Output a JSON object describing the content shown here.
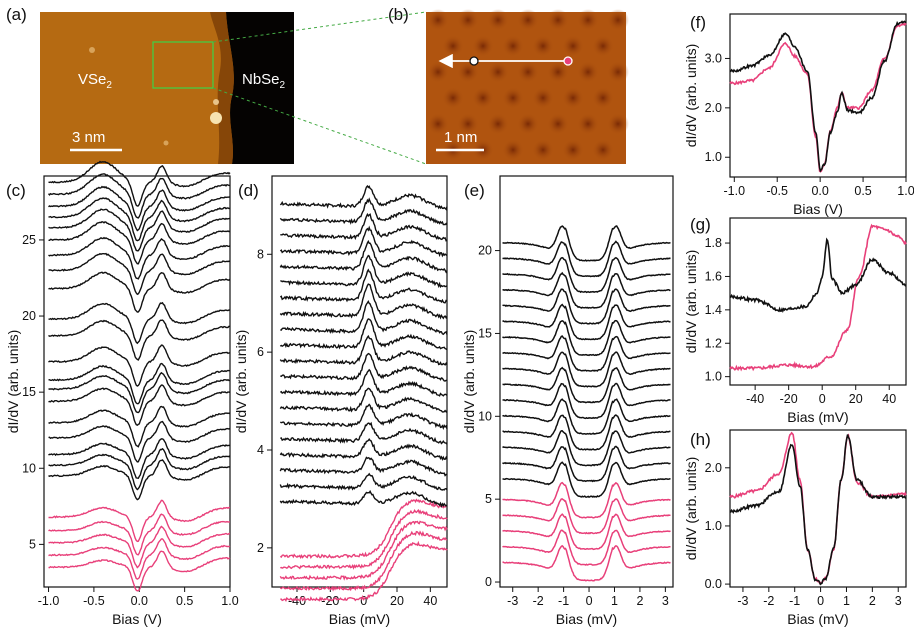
{
  "panel_labels": {
    "a": "(a)",
    "b": "(b)",
    "c": "(c)",
    "d": "(d)",
    "e": "(e)",
    "f": "(f)",
    "g": "(g)",
    "h": "(h)"
  },
  "images": {
    "a": {
      "left_label": "VSe",
      "left_sub": "2",
      "right_label": "NbSe",
      "right_sub": "2",
      "scale": "3 nm"
    },
    "b": {
      "scale": "1 nm"
    }
  },
  "colors": {
    "black": "#111111",
    "pink": "#e8407a"
  },
  "chart_data": [
    {
      "panel": "c",
      "type": "line",
      "xlabel": "Bias (V)",
      "ylabel": "dI/dV (arb. units)",
      "xlim": [
        -1.05,
        1.0
      ],
      "ylim": [
        2.2,
        29.2
      ],
      "xticks": [
        -1.0,
        -0.5,
        0.0,
        0.5,
        1.0
      ],
      "xtick_labels": [
        "-1.0",
        "-0.5",
        "0.0",
        "0.5",
        "1.0"
      ],
      "yticks": [
        5,
        10,
        15,
        20,
        25
      ],
      "ytick_labels": [
        "5",
        "10",
        "15",
        "20",
        "25"
      ],
      "series": [
        {
          "name": "black",
          "color": "#111111",
          "count": 20
        },
        {
          "name": "pink",
          "color": "#e8407a",
          "count": 5
        }
      ],
      "offsets": [
        3.5,
        4.3,
        5.1,
        5.9,
        6.8,
        9.5,
        10.2,
        10.9,
        12.0,
        13.0,
        14.4,
        15.2,
        15.8,
        17.0,
        18.7,
        19.8,
        21.8,
        23.0,
        24.0,
        25.0,
        25.8,
        26.5,
        27.2,
        28.0,
        28.8
      ]
    },
    {
      "panel": "d",
      "type": "line",
      "xlabel": "Bias (mV)",
      "ylabel": "dI/dV (arb. units)",
      "xlim": [
        -55,
        50
      ],
      "ylim": [
        1.2,
        9.6
      ],
      "xticks": [
        -40,
        -20,
        0,
        20,
        40
      ],
      "xtick_labels": [
        "-40",
        "-20",
        "0",
        "20",
        "40"
      ],
      "yticks": [
        2,
        4,
        6,
        8
      ],
      "ytick_labels": [
        "2",
        "4",
        "6",
        "8"
      ],
      "series": [
        {
          "name": "black",
          "color": "#111111",
          "count": 20
        },
        {
          "name": "pink",
          "color": "#e8407a",
          "count": 5
        }
      ]
    },
    {
      "panel": "e",
      "type": "line",
      "xlabel": "Bias (mV)",
      "ylabel": "dI/dV (arb. units)",
      "xlim": [
        -3.5,
        3.3
      ],
      "ylim": [
        -0.3,
        24.5
      ],
      "xticks": [
        -3,
        -2,
        -1,
        0,
        1,
        2,
        3
      ],
      "xtick_labels": [
        "-3",
        "-2",
        "-1",
        "0",
        "1",
        "2",
        "3"
      ],
      "yticks": [
        0,
        5,
        10,
        15,
        20
      ],
      "ytick_labels": [
        "0",
        "5",
        "10",
        "15",
        "20"
      ],
      "series": [
        {
          "name": "black",
          "color": "#111111",
          "count": 16
        },
        {
          "name": "pink",
          "color": "#e8407a",
          "count": 5
        }
      ]
    },
    {
      "panel": "f",
      "type": "line",
      "xlabel": "Bias (V)",
      "ylabel": "dI/dV (arb. units)",
      "xlim": [
        -1.05,
        1.0
      ],
      "ylim": [
        0.6,
        3.9
      ],
      "xticks": [
        -1.0,
        -0.5,
        0.0,
        0.5,
        1.0
      ],
      "xtick_labels": [
        "-1.0",
        "-0.5",
        "0.0",
        "0.5",
        "1.0"
      ],
      "yticks": [
        1.0,
        2.0,
        3.0
      ],
      "ytick_labels": [
        "1.0",
        "2.0",
        "3.0"
      ],
      "series": [
        {
          "name": "black",
          "color": "#111111",
          "points": [
            [
              -1.0,
              2.75
            ],
            [
              -0.8,
              2.85
            ],
            [
              -0.6,
              3.05
            ],
            [
              -0.4,
              3.5
            ],
            [
              -0.3,
              3.25
            ],
            [
              -0.15,
              2.75
            ],
            [
              -0.05,
              1.5
            ],
            [
              0.0,
              0.75
            ],
            [
              0.05,
              0.85
            ],
            [
              0.12,
              1.5
            ],
            [
              0.2,
              1.9
            ],
            [
              0.25,
              2.3
            ],
            [
              0.32,
              1.95
            ],
            [
              0.45,
              1.9
            ],
            [
              0.6,
              2.2
            ],
            [
              0.75,
              2.95
            ],
            [
              0.9,
              3.7
            ],
            [
              1.0,
              3.75
            ]
          ]
        },
        {
          "name": "pink",
          "color": "#e8407a",
          "points": [
            [
              -1.0,
              2.5
            ],
            [
              -0.8,
              2.55
            ],
            [
              -0.6,
              2.8
            ],
            [
              -0.4,
              3.3
            ],
            [
              -0.3,
              3.05
            ],
            [
              -0.15,
              2.7
            ],
            [
              -0.05,
              1.4
            ],
            [
              0.0,
              0.7
            ],
            [
              0.05,
              0.85
            ],
            [
              0.12,
              1.55
            ],
            [
              0.2,
              2.0
            ],
            [
              0.25,
              2.3
            ],
            [
              0.32,
              2.0
            ],
            [
              0.45,
              2.0
            ],
            [
              0.6,
              2.35
            ],
            [
              0.75,
              3.0
            ],
            [
              0.9,
              3.65
            ],
            [
              1.0,
              3.7
            ]
          ]
        }
      ]
    },
    {
      "panel": "g",
      "type": "line",
      "xlabel": "Bias (mV)",
      "ylabel": "dI/dV (arb. units)",
      "xlim": [
        -55,
        50
      ],
      "ylim": [
        0.95,
        1.95
      ],
      "xticks": [
        -40,
        -20,
        0,
        20,
        40
      ],
      "xtick_labels": [
        "-40",
        "-20",
        "0",
        "20",
        "40"
      ],
      "yticks": [
        1.0,
        1.2,
        1.4,
        1.6,
        1.8
      ],
      "ytick_labels": [
        "1.0",
        "1.2",
        "1.4",
        "1.6",
        "1.8"
      ],
      "series": [
        {
          "name": "black",
          "color": "#111111",
          "points": [
            [
              -55,
              1.48
            ],
            [
              -40,
              1.46
            ],
            [
              -25,
              1.4
            ],
            [
              -10,
              1.42
            ],
            [
              -3,
              1.5
            ],
            [
              0,
              1.6
            ],
            [
              3,
              1.82
            ],
            [
              6,
              1.58
            ],
            [
              12,
              1.5
            ],
            [
              20,
              1.55
            ],
            [
              30,
              1.7
            ],
            [
              40,
              1.62
            ],
            [
              50,
              1.55
            ]
          ]
        },
        {
          "name": "pink",
          "color": "#e8407a",
          "points": [
            [
              -55,
              1.05
            ],
            [
              -40,
              1.05
            ],
            [
              -20,
              1.07
            ],
            [
              -5,
              1.06
            ],
            [
              5,
              1.12
            ],
            [
              15,
              1.28
            ],
            [
              22,
              1.6
            ],
            [
              30,
              1.9
            ],
            [
              38,
              1.88
            ],
            [
              45,
              1.84
            ],
            [
              50,
              1.8
            ]
          ]
        }
      ]
    },
    {
      "panel": "h",
      "type": "line",
      "xlabel": "Bias (mV)",
      "ylabel": "dI/dV (arb. units)",
      "xlim": [
        -3.5,
        3.3
      ],
      "ylim": [
        -0.05,
        2.65
      ],
      "xticks": [
        -3,
        -2,
        -1,
        0,
        1,
        2,
        3
      ],
      "xtick_labels": [
        "-3",
        "-2",
        "-1",
        "0",
        "1",
        "2",
        "3"
      ],
      "yticks": [
        0.0,
        1.0,
        2.0
      ],
      "ytick_labels": [
        "0.0",
        "1.0",
        "2.0"
      ],
      "series": [
        {
          "name": "black",
          "color": "#111111",
          "points": [
            [
              -3.5,
              1.25
            ],
            [
              -2.5,
              1.35
            ],
            [
              -1.6,
              1.6
            ],
            [
              -1.1,
              2.4
            ],
            [
              -0.8,
              1.7
            ],
            [
              -0.5,
              0.6
            ],
            [
              -0.2,
              0.08
            ],
            [
              0.0,
              0.02
            ],
            [
              0.2,
              0.1
            ],
            [
              0.5,
              0.6
            ],
            [
              0.8,
              1.8
            ],
            [
              1.05,
              2.55
            ],
            [
              1.4,
              1.8
            ],
            [
              2.0,
              1.5
            ],
            [
              3.3,
              1.5
            ]
          ]
        },
        {
          "name": "pink",
          "color": "#e8407a",
          "points": [
            [
              -3.5,
              1.5
            ],
            [
              -2.5,
              1.6
            ],
            [
              -1.6,
              1.9
            ],
            [
              -1.1,
              2.6
            ],
            [
              -0.8,
              1.8
            ],
            [
              -0.5,
              0.6
            ],
            [
              -0.2,
              0.08
            ],
            [
              0.0,
              0.02
            ],
            [
              0.2,
              0.1
            ],
            [
              0.5,
              0.6
            ],
            [
              0.8,
              1.8
            ],
            [
              1.05,
              2.55
            ],
            [
              1.4,
              1.75
            ],
            [
              2.0,
              1.5
            ],
            [
              3.3,
              1.55
            ]
          ]
        }
      ]
    }
  ]
}
